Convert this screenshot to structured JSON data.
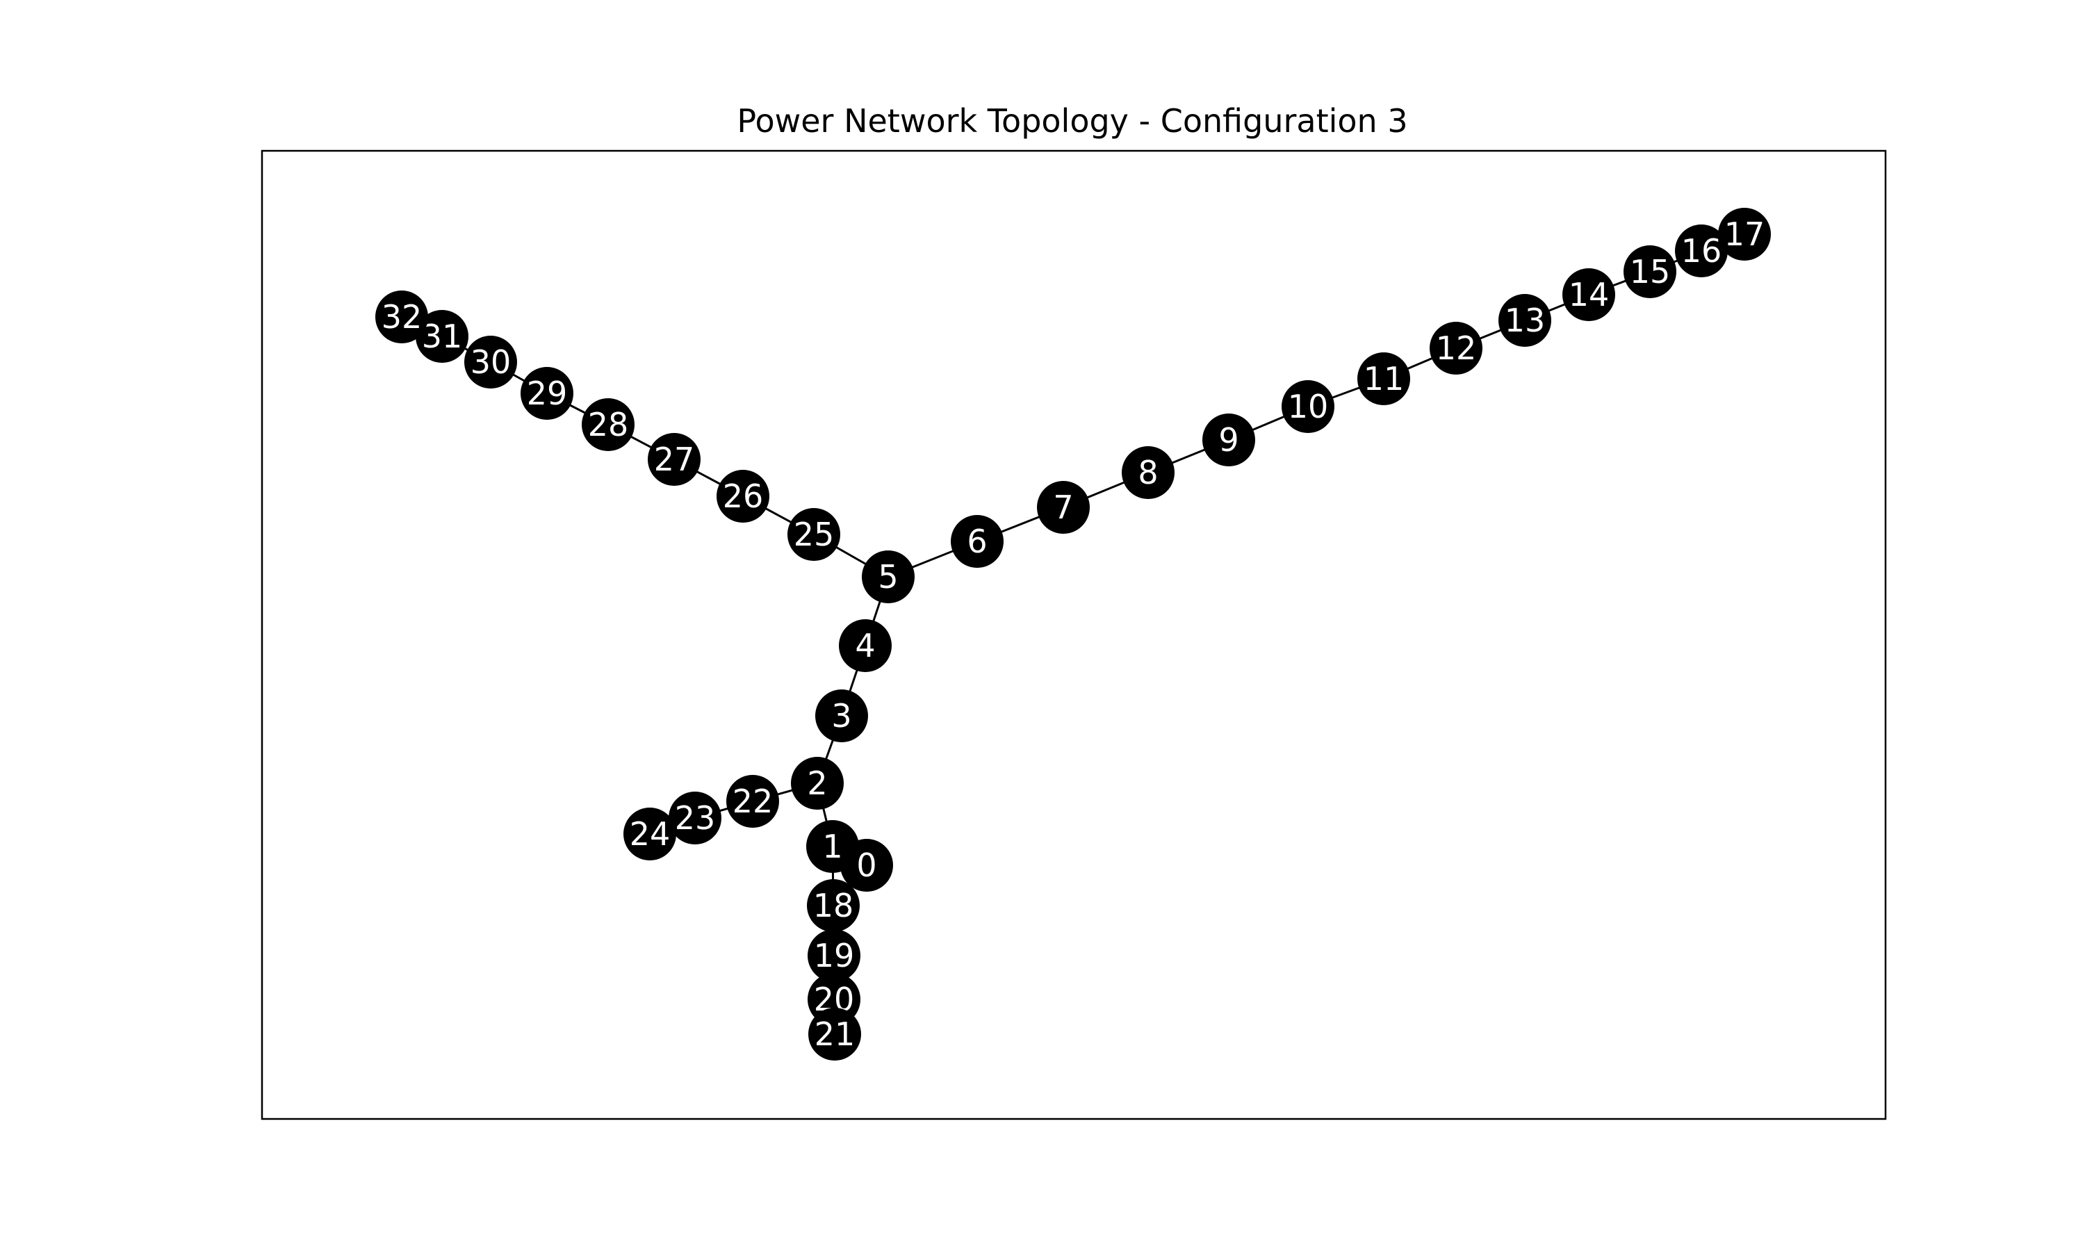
{
  "title": "Power Network Topology - Configuration 3",
  "colors": {
    "node_fill": "#000000",
    "node_label": "#ffffff",
    "edge": "#000000",
    "frame": "#000000",
    "background": "#ffffff"
  },
  "nodes": [
    {
      "id": "0",
      "label": "0"
    },
    {
      "id": "1",
      "label": "1"
    },
    {
      "id": "2",
      "label": "2"
    },
    {
      "id": "3",
      "label": "3"
    },
    {
      "id": "4",
      "label": "4"
    },
    {
      "id": "5",
      "label": "5"
    },
    {
      "id": "6",
      "label": "6"
    },
    {
      "id": "7",
      "label": "7"
    },
    {
      "id": "8",
      "label": "8"
    },
    {
      "id": "9",
      "label": "9"
    },
    {
      "id": "10",
      "label": "10"
    },
    {
      "id": "11",
      "label": "11"
    },
    {
      "id": "12",
      "label": "12"
    },
    {
      "id": "13",
      "label": "13"
    },
    {
      "id": "14",
      "label": "14"
    },
    {
      "id": "15",
      "label": "15"
    },
    {
      "id": "16",
      "label": "16"
    },
    {
      "id": "17",
      "label": "17"
    },
    {
      "id": "18",
      "label": "18"
    },
    {
      "id": "19",
      "label": "19"
    },
    {
      "id": "20",
      "label": "20"
    },
    {
      "id": "21",
      "label": "21"
    },
    {
      "id": "22",
      "label": "22"
    },
    {
      "id": "23",
      "label": "23"
    },
    {
      "id": "24",
      "label": "24"
    },
    {
      "id": "25",
      "label": "25"
    },
    {
      "id": "26",
      "label": "26"
    },
    {
      "id": "27",
      "label": "27"
    },
    {
      "id": "28",
      "label": "28"
    },
    {
      "id": "29",
      "label": "29"
    },
    {
      "id": "30",
      "label": "30"
    },
    {
      "id": "31",
      "label": "31"
    },
    {
      "id": "32",
      "label": "32"
    }
  ],
  "edges": [
    [
      "0",
      "1"
    ],
    [
      "1",
      "2"
    ],
    [
      "2",
      "3"
    ],
    [
      "3",
      "4"
    ],
    [
      "4",
      "5"
    ],
    [
      "5",
      "6"
    ],
    [
      "6",
      "7"
    ],
    [
      "7",
      "8"
    ],
    [
      "8",
      "9"
    ],
    [
      "9",
      "10"
    ],
    [
      "10",
      "11"
    ],
    [
      "11",
      "12"
    ],
    [
      "12",
      "13"
    ],
    [
      "13",
      "14"
    ],
    [
      "14",
      "15"
    ],
    [
      "15",
      "16"
    ],
    [
      "16",
      "17"
    ],
    [
      "1",
      "18"
    ],
    [
      "18",
      "19"
    ],
    [
      "19",
      "20"
    ],
    [
      "20",
      "21"
    ],
    [
      "2",
      "22"
    ],
    [
      "22",
      "23"
    ],
    [
      "23",
      "24"
    ],
    [
      "5",
      "25"
    ],
    [
      "25",
      "26"
    ],
    [
      "26",
      "27"
    ],
    [
      "27",
      "28"
    ],
    [
      "28",
      "29"
    ],
    [
      "29",
      "30"
    ],
    [
      "30",
      "31"
    ],
    [
      "31",
      "32"
    ]
  ]
}
